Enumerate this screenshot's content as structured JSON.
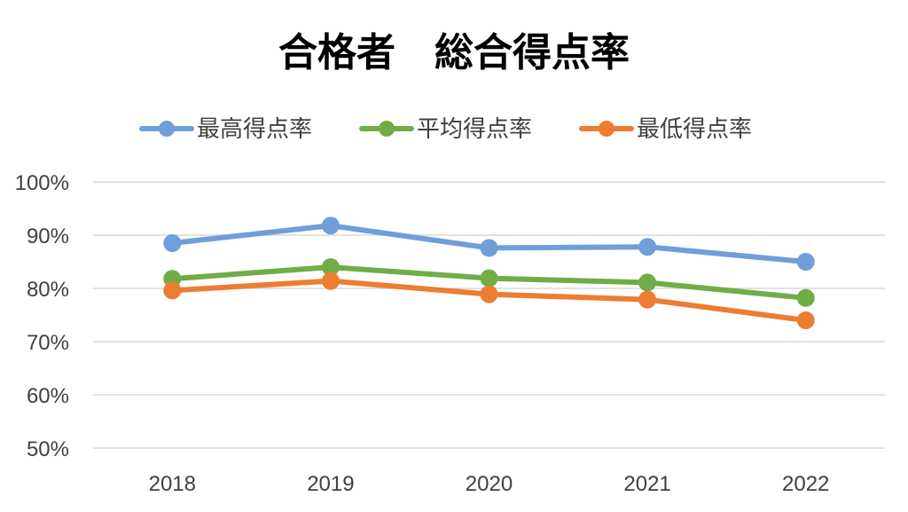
{
  "chart_data": {
    "type": "line",
    "title": "合格者　総合得点率",
    "categories": [
      "2018",
      "2019",
      "2020",
      "2021",
      "2022"
    ],
    "y_ticks": [
      "100%",
      "90%",
      "80%",
      "70%",
      "60%",
      "50%"
    ],
    "ylim": [
      50,
      100
    ],
    "y_unit": "%",
    "grid": true,
    "legend_position": "top",
    "series": [
      {
        "name": "最高得点率",
        "color": "#6f9fd8",
        "values": [
          88.5,
          91.8,
          87.6,
          87.8,
          85.0
        ]
      },
      {
        "name": "平均得点率",
        "color": "#70ad47",
        "values": [
          81.8,
          84.0,
          81.9,
          81.1,
          78.2
        ]
      },
      {
        "name": "最低得点率",
        "color": "#ed7d31",
        "values": [
          79.6,
          81.4,
          78.9,
          77.9,
          74.0
        ]
      }
    ]
  }
}
